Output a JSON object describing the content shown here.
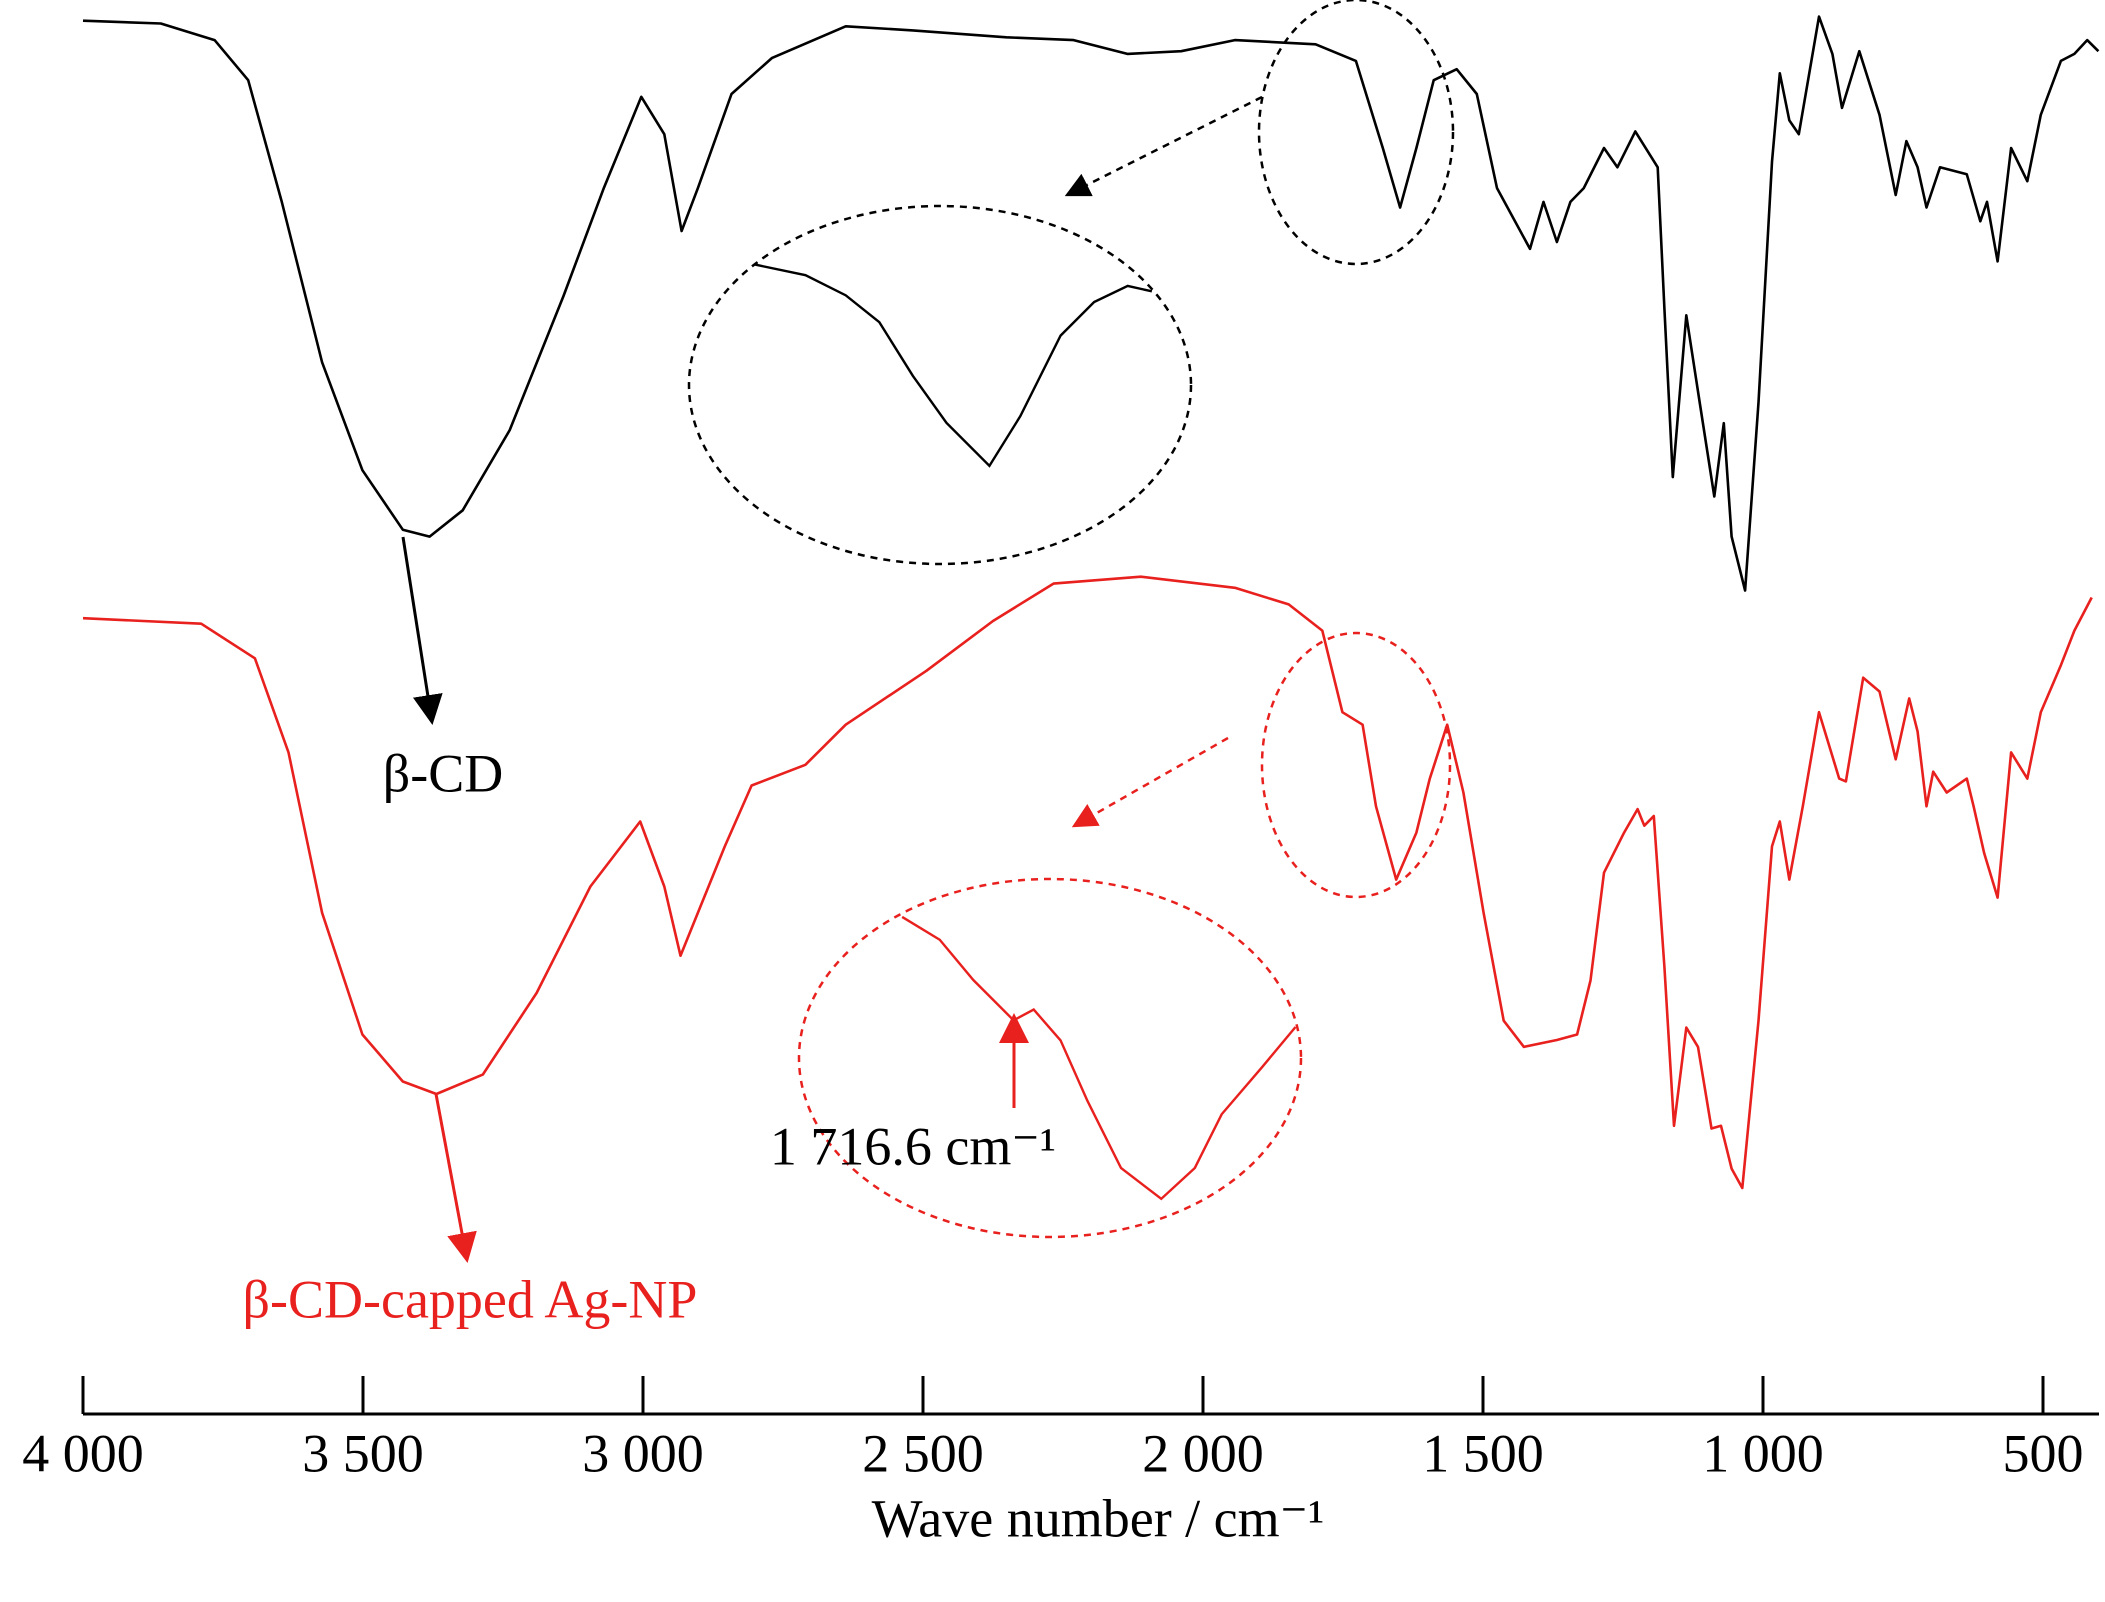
{
  "chart_data": {
    "type": "line",
    "xlabel": "Wave number / cm⁻¹",
    "xlim": [
      4000,
      400
    ],
    "ylim": [
      0,
      100
    ],
    "xticks": [
      {
        "value": 4000,
        "label": "4 000"
      },
      {
        "value": 3500,
        "label": "3 500"
      },
      {
        "value": 3000,
        "label": "3 000"
      },
      {
        "value": 2500,
        "label": "2 500"
      },
      {
        "value": 2000,
        "label": "2 000"
      },
      {
        "value": 1500,
        "label": "1 500"
      },
      {
        "value": 1000,
        "label": "1 000"
      },
      500
    ],
    "annotations": [
      "1 716.6 cm⁻¹"
    ],
    "series": [
      {
        "name": "β-CD",
        "color": "#000000",
        "x": [
          4000,
          3861,
          3765,
          3705,
          3645,
          3573,
          3501,
          3429,
          3381,
          3322,
          3238,
          3142,
          3070,
          3003,
          2962,
          2931,
          2902,
          2842,
          2770,
          2638,
          2518,
          2351,
          2231,
          2135,
          2039,
          1943,
          1799,
          1727,
          1679,
          1648,
          1619,
          1588,
          1547,
          1511,
          1475,
          1416,
          1392,
          1368,
          1344,
          1320,
          1284,
          1260,
          1228,
          1188,
          1176,
          1161,
          1137,
          1113,
          1087,
          1070,
          1056,
          1032,
          1008,
          984,
          970,
          953,
          936,
          900,
          876,
          859,
          828,
          792,
          763,
          744,
          724,
          708,
          684,
          636,
          612,
          600,
          581,
          557,
          528,
          504,
          468,
          444,
          421,
          401
        ],
        "values": [
          98.5,
          98.3,
          97.1,
          94.2,
          85.4,
          73.8,
          66.0,
          61.7,
          61.2,
          63.1,
          68.9,
          78.6,
          86.4,
          93.0,
          90.3,
          83.3,
          86.4,
          93.2,
          95.8,
          98.1,
          97.8,
          97.3,
          97.1,
          96.1,
          96.3,
          97.1,
          96.8,
          95.6,
          89.3,
          85.0,
          89.3,
          94.2,
          95.0,
          93.2,
          86.4,
          82.0,
          85.4,
          82.5,
          85.4,
          86.4,
          89.3,
          87.9,
          90.5,
          87.9,
          77.7,
          65.5,
          77.2,
          70.9,
          64.1,
          69.4,
          61.2,
          57.3,
          70.9,
          88.3,
          94.7,
          91.3,
          90.3,
          98.8,
          96.1,
          92.2,
          96.3,
          91.7,
          85.9,
          89.8,
          87.9,
          85.0,
          87.9,
          87.4,
          84.0,
          85.4,
          81.1,
          89.3,
          86.9,
          91.7,
          95.6,
          96.1,
          97.1,
          96.3
        ]
      },
      {
        "name": "β-CD-capped Ag-NP",
        "color": "#e8201e",
        "x": [
          4000,
          3789,
          3693,
          3633,
          3573,
          3501,
          3429,
          3369,
          3286,
          3190,
          3094,
          3005,
          2962,
          2933,
          2902,
          2854,
          2806,
          2710,
          2638,
          2494,
          2375,
          2267,
          2111,
          1943,
          1847,
          1787,
          1751,
          1715,
          1691,
          1655,
          1619,
          1595,
          1564,
          1535,
          1499,
          1463,
          1427,
          1368,
          1332,
          1308,
          1284,
          1248,
          1224,
          1212,
          1195,
          1176,
          1159,
          1137,
          1116,
          1092,
          1075,
          1056,
          1037,
          1008,
          984,
          970,
          953,
          929,
          900,
          864,
          852,
          821,
          792,
          763,
          739,
          724,
          708,
          696,
          672,
          636,
          624,
          605,
          581,
          557,
          528,
          504,
          468,
          444,
          413
        ],
        "values": [
          55.3,
          54.9,
          52.4,
          45.6,
          34.0,
          25.2,
          21.8,
          20.9,
          22.3,
          28.2,
          35.9,
          40.6,
          35.9,
          30.9,
          34.0,
          38.8,
          43.2,
          44.7,
          47.6,
          51.5,
          55.1,
          57.8,
          58.3,
          57.5,
          56.3,
          54.4,
          48.5,
          47.6,
          41.7,
          36.4,
          39.8,
          43.7,
          47.6,
          42.7,
          34.0,
          26.2,
          24.3,
          24.8,
          25.2,
          29.1,
          36.9,
          39.8,
          41.5,
          40.3,
          41.0,
          30.1,
          18.6,
          25.7,
          24.3,
          18.4,
          18.6,
          15.5,
          14.1,
          26.2,
          38.8,
          40.6,
          36.4,
          41.7,
          48.5,
          43.7,
          43.5,
          51.0,
          50.0,
          45.1,
          49.5,
          47.1,
          41.7,
          44.2,
          42.7,
          43.7,
          41.7,
          38.3,
          35.1,
          45.6,
          43.7,
          48.5,
          51.9,
          54.4,
          56.8
        ]
      }
    ]
  }
}
